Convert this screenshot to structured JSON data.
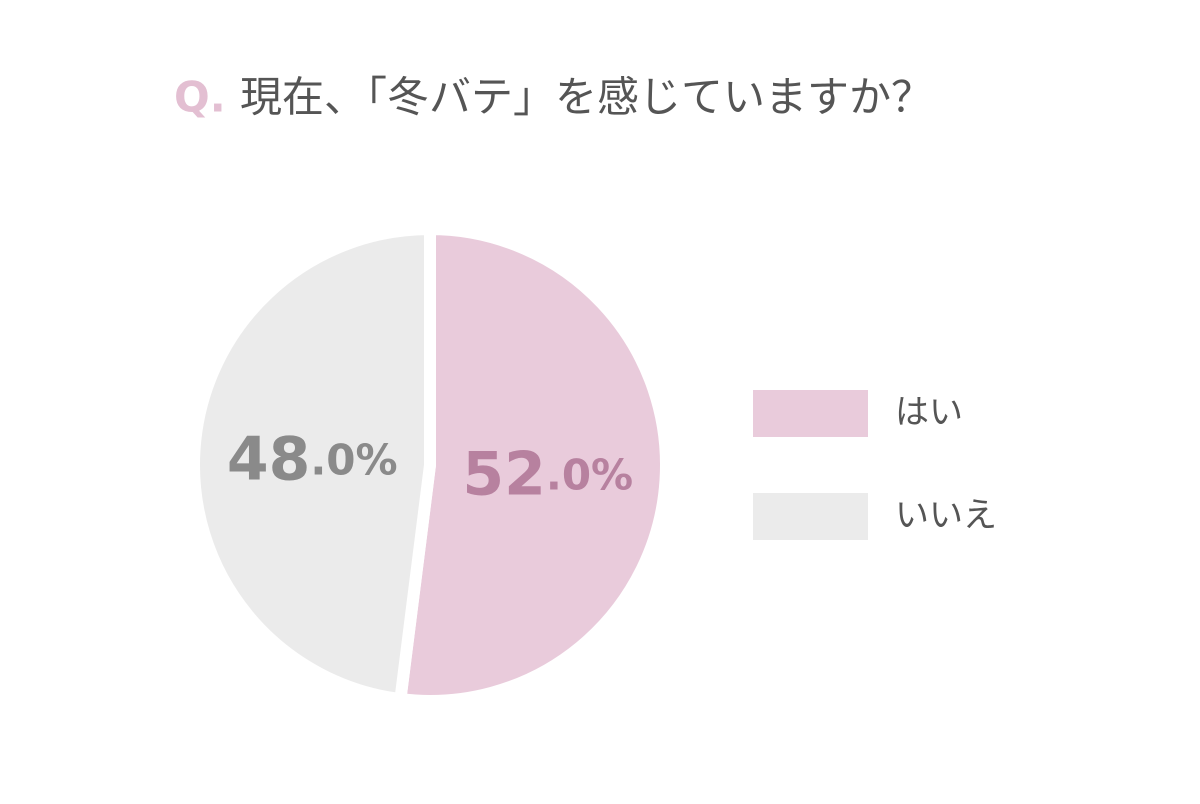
{
  "chart_data": {
    "type": "pie",
    "title_marker": "Q.",
    "title": "現在、「冬バテ」を感じていますか？",
    "categories": [
      "はい",
      "いいえ"
    ],
    "values": [
      52,
      48
    ],
    "value_labels": [
      "52.0%",
      "48.0%"
    ],
    "colors": [
      "#e9cbdb",
      "#ebebeb"
    ],
    "label_colors": [
      "#b7819f",
      "#8a8a8a"
    ],
    "legend": "right"
  }
}
